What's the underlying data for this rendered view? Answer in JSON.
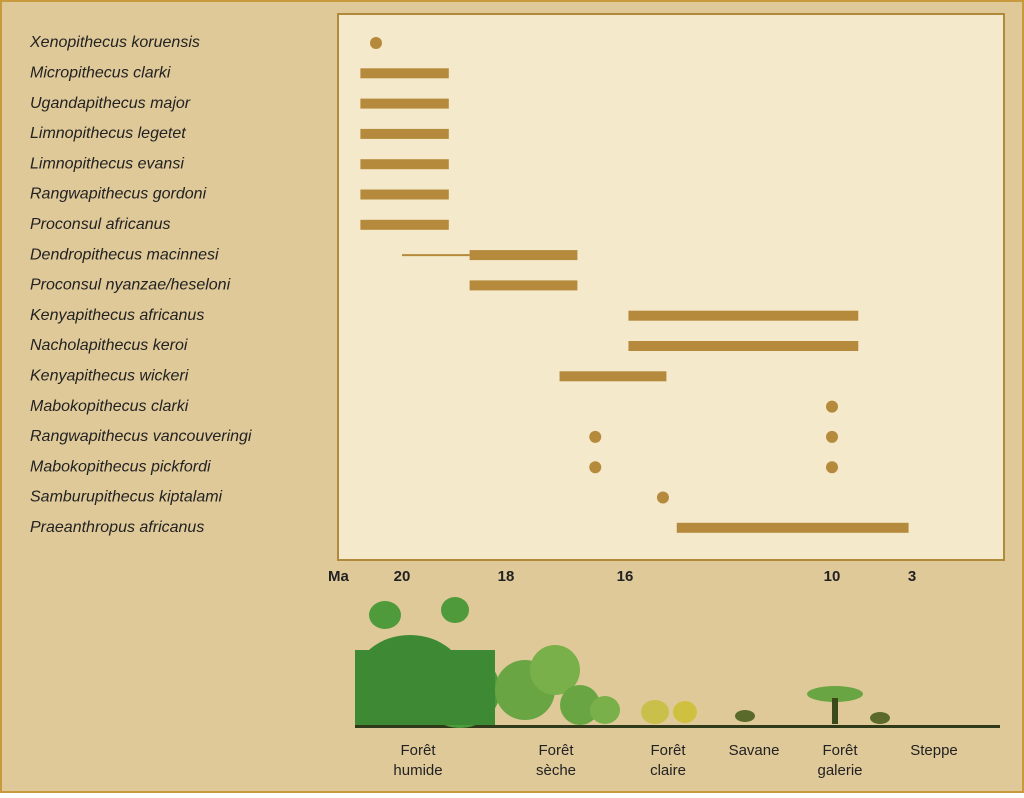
{
  "chart_data": {
    "type": "range",
    "axis_label": "Ma",
    "xticks": [
      20,
      18,
      16,
      10,
      3
    ],
    "color": "#b58a3c",
    "species": [
      {
        "name": "Xenopithecus koruensis",
        "points": [
          20.5
        ]
      },
      {
        "name": "Micropithecus clarki",
        "range": [
          20.8,
          19.1
        ]
      },
      {
        "name": "Ugandapithecus major",
        "range": [
          20.8,
          19.1
        ]
      },
      {
        "name": "Limnopithecus legetet",
        "range": [
          20.8,
          19.1
        ]
      },
      {
        "name": "Limnopithecus evansi",
        "range": [
          20.8,
          19.1
        ]
      },
      {
        "name": "Rangwapithecus gordoni",
        "range": [
          20.8,
          19.1
        ]
      },
      {
        "name": "Proconsul africanus",
        "range": [
          20.8,
          19.1
        ]
      },
      {
        "name": "Dendropithecus macinnesi",
        "thin": [
          20.0,
          18.7
        ],
        "range": [
          18.7,
          16.8
        ]
      },
      {
        "name": "Proconsul nyanzae/heseloni",
        "range": [
          18.7,
          16.8
        ]
      },
      {
        "name": "Kenyapithecus africanus",
        "range": [
          15.9,
          7.7
        ]
      },
      {
        "name": "Nacholapithecus keroi",
        "range": [
          15.9,
          7.7
        ]
      },
      {
        "name": "Kenyapithecus wickeri",
        "range": [
          17.1,
          14.8
        ]
      },
      {
        "name": "Mabokopithecus clarki",
        "points": [
          10
        ]
      },
      {
        "name": "Rangwapithecus vancouveringi",
        "points": [
          16.5,
          10
        ]
      },
      {
        "name": "Mabokopithecus pickfordi",
        "points": [
          16.5,
          10
        ]
      },
      {
        "name": "Samburupithecus kiptalami",
        "points": [
          14.9
        ]
      },
      {
        "name": "Praeanthropus africanus",
        "range": [
          14.5,
          3.3
        ]
      }
    ],
    "habitats": [
      [
        "Forêt",
        "humide"
      ],
      [
        "Forêt",
        "sèche"
      ],
      [
        "Forêt",
        "claire"
      ],
      [
        "Savane"
      ],
      [
        "Forêt",
        "galerie"
      ],
      [
        "Steppe"
      ]
    ]
  }
}
